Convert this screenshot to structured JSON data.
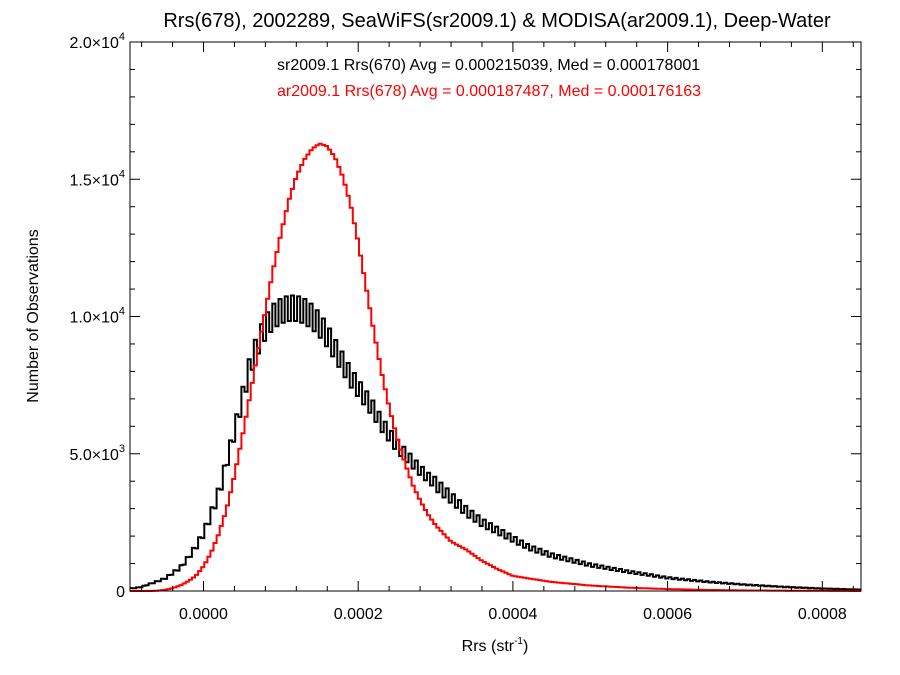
{
  "chart_data": {
    "type": "histogram",
    "title": "Rrs(678), 2002289, SeaWiFS(sr2009.1) & MODISA(ar2009.1), Deep-Water",
    "xlabel": {
      "base": "Rrs (str",
      "sup": "-1",
      "close": ")"
    },
    "ylabel": "Number of Observations",
    "xlim": [
      -9.5e-05,
      0.00085
    ],
    "ylim": [
      0,
      20000
    ],
    "xticks": [
      {
        "value": 0.0,
        "label": "0.0000"
      },
      {
        "value": 0.0002,
        "label": "0.0002"
      },
      {
        "value": 0.0004,
        "label": "0.0004"
      },
      {
        "value": 0.0006,
        "label": "0.0006"
      },
      {
        "value": 0.0008,
        "label": "0.0008"
      }
    ],
    "yticks": [
      {
        "value": 0,
        "mantissa": "0",
        "exp": ""
      },
      {
        "value": 5000,
        "mantissa": "5.0×10",
        "exp": "3"
      },
      {
        "value": 10000,
        "mantissa": "1.0×10",
        "exp": "4"
      },
      {
        "value": 15000,
        "mantissa": "1.5×10",
        "exp": "4"
      },
      {
        "value": 20000,
        "mantissa": "2.0×10",
        "exp": "4"
      }
    ],
    "legend_placement": "top-center",
    "series": [
      {
        "name": "sr2009.1 Rrs(670) Avg = 0.000215039, Med = 0.000178001",
        "color": "#000000",
        "x": [
          -9e-05,
          -8e-05,
          -7e-05,
          -6e-05,
          -5e-05,
          -4e-05,
          -3e-05,
          -2e-05,
          -1e-05,
          0.0,
          1e-05,
          2e-05,
          3e-05,
          4e-05,
          5e-05,
          6e-05,
          7e-05,
          8e-05,
          9e-05,
          0.0001,
          0.00011,
          0.00012,
          0.00013,
          0.00014,
          0.00015,
          0.00016,
          0.00017,
          0.00018,
          0.00019,
          0.0002,
          0.00021,
          0.00022,
          0.00023,
          0.00024,
          0.00025,
          0.00026,
          0.00027,
          0.00028,
          0.0003,
          0.00032,
          0.00034,
          0.00036,
          0.00038,
          0.0004,
          0.00042,
          0.00045,
          0.0005,
          0.00055,
          0.0006,
          0.00065,
          0.0007,
          0.00075,
          0.0008,
          0.00085
        ],
        "y": [
          100,
          150,
          250,
          350,
          450,
          650,
          850,
          1200,
          1600,
          2100,
          2800,
          3600,
          4700,
          5800,
          7000,
          8200,
          9000,
          9600,
          10000,
          10200,
          10300,
          10300,
          10200,
          10000,
          9700,
          9300,
          8800,
          8300,
          7800,
          7400,
          7000,
          6600,
          6100,
          5700,
          5300,
          5000,
          4700,
          4400,
          3900,
          3400,
          2900,
          2500,
          2200,
          1900,
          1600,
          1300,
          950,
          700,
          480,
          340,
          230,
          150,
          90,
          50
        ]
      },
      {
        "name": "ar2009.1 Rrs(678) Avg = 0.000187487, Med = 0.000176163",
        "color": "#ff0000",
        "x": [
          -9e-05,
          -8e-05,
          -7e-05,
          -6e-05,
          -5e-05,
          -4e-05,
          -3e-05,
          -2e-05,
          -1e-05,
          0.0,
          1e-05,
          2e-05,
          3e-05,
          4e-05,
          5e-05,
          6e-05,
          7e-05,
          8e-05,
          9e-05,
          0.0001,
          0.00011,
          0.00012,
          0.00013,
          0.00014,
          0.00015,
          0.00016,
          0.00017,
          0.00018,
          0.00019,
          0.0002,
          0.00021,
          0.00022,
          0.00023,
          0.00024,
          0.00025,
          0.00026,
          0.00027,
          0.00028,
          0.00029,
          0.0003,
          0.00032,
          0.00034,
          0.00036,
          0.00038,
          0.0004,
          0.00045,
          0.0005,
          0.00055,
          0.0006,
          0.00065,
          0.0007,
          0.00085
        ],
        "y": [
          0,
          0,
          0,
          10,
          40,
          100,
          200,
          350,
          550,
          900,
          1400,
          2100,
          3000,
          4200,
          5600,
          7100,
          8700,
          10200,
          11700,
          13000,
          14200,
          15100,
          15700,
          16100,
          16300,
          16200,
          15800,
          15100,
          14100,
          12700,
          11100,
          9500,
          8000,
          6700,
          5600,
          4700,
          3900,
          3300,
          2800,
          2400,
          1800,
          1500,
          1100,
          800,
          550,
          330,
          200,
          120,
          70,
          40,
          20,
          0
        ]
      }
    ]
  }
}
